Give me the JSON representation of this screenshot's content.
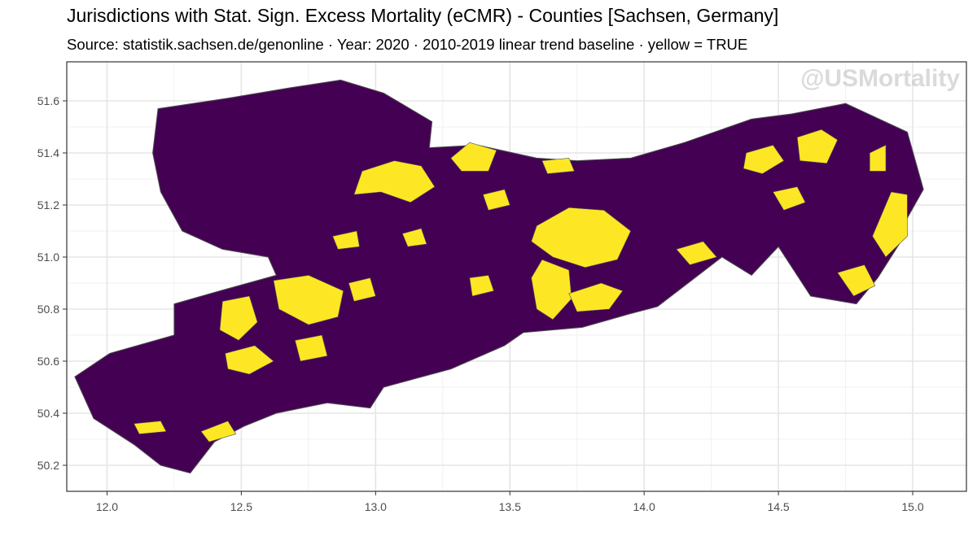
{
  "title": "Jurisdictions with Stat. Sign. Excess Mortality (eCMR) - Counties [Sachsen, Germany]",
  "subtitle": "Source: statistik.sachsen.de/genonline · Year: 2020 · 2010-2019 linear trend baseline · yellow = TRUE",
  "watermark": "@USMortality",
  "colors": {
    "false_fill": "#440154",
    "true_fill": "#FDE725",
    "border": "#4d4d4d",
    "grid": "#e5e5e5",
    "panel_border": "#333333"
  },
  "chart_data": {
    "type": "map",
    "region": "Sachsen, Germany",
    "level": "Counties",
    "year": "2020",
    "legend": "yellow = TRUE",
    "xlim": [
      11.85,
      15.2
    ],
    "ylim": [
      50.1,
      51.75
    ],
    "x_ticks": [
      "12.0",
      "12.5",
      "13.0",
      "13.5",
      "14.0",
      "14.5",
      "15.0"
    ],
    "y_ticks": [
      "50.2",
      "50.4",
      "50.6",
      "50.8",
      "51.0",
      "51.2",
      "51.4",
      "51.6"
    ],
    "outline_lonlat": [
      [
        12.19,
        51.57
      ],
      [
        12.45,
        51.61
      ],
      [
        12.68,
        51.65
      ],
      [
        12.87,
        51.68
      ],
      [
        13.03,
        51.63
      ],
      [
        13.21,
        51.52
      ],
      [
        13.2,
        51.42
      ],
      [
        13.38,
        51.43
      ],
      [
        13.6,
        51.38
      ],
      [
        13.75,
        51.37
      ],
      [
        13.95,
        51.38
      ],
      [
        14.15,
        51.44
      ],
      [
        14.4,
        51.53
      ],
      [
        14.55,
        51.55
      ],
      [
        14.75,
        51.59
      ],
      [
        14.98,
        51.48
      ],
      [
        15.04,
        51.26
      ],
      [
        14.98,
        51.15
      ],
      [
        14.95,
        51.05
      ],
      [
        14.87,
        50.92
      ],
      [
        14.79,
        50.82
      ],
      [
        14.62,
        50.85
      ],
      [
        14.5,
        51.04
      ],
      [
        14.4,
        50.93
      ],
      [
        14.29,
        51.0
      ],
      [
        14.05,
        50.81
      ],
      [
        13.94,
        50.78
      ],
      [
        13.77,
        50.73
      ],
      [
        13.55,
        50.71
      ],
      [
        13.48,
        50.66
      ],
      [
        13.28,
        50.57
      ],
      [
        13.03,
        50.5
      ],
      [
        12.98,
        50.42
      ],
      [
        12.82,
        50.44
      ],
      [
        12.63,
        50.4
      ],
      [
        12.51,
        50.35
      ],
      [
        12.4,
        50.29
      ],
      [
        12.31,
        50.17
      ],
      [
        12.2,
        50.2
      ],
      [
        12.1,
        50.28
      ],
      [
        11.95,
        50.38
      ],
      [
        11.88,
        50.54
      ],
      [
        12.01,
        50.63
      ],
      [
        12.25,
        50.7
      ],
      [
        12.25,
        50.82
      ],
      [
        12.42,
        50.87
      ],
      [
        12.63,
        50.93
      ],
      [
        12.6,
        51.0
      ],
      [
        12.43,
        51.03
      ],
      [
        12.28,
        51.1
      ],
      [
        12.2,
        51.25
      ],
      [
        12.17,
        51.4
      ]
    ],
    "yellow_regions_lonlat": [
      [
        [
          13.6,
          51.12
        ],
        [
          13.72,
          51.19
        ],
        [
          13.85,
          51.18
        ],
        [
          13.95,
          51.1
        ],
        [
          13.9,
          50.99
        ],
        [
          13.78,
          50.96
        ],
        [
          13.66,
          51.0
        ],
        [
          13.58,
          51.06
        ]
      ],
      [
        [
          13.62,
          50.99
        ],
        [
          13.72,
          50.95
        ],
        [
          13.73,
          50.84
        ],
        [
          13.66,
          50.76
        ],
        [
          13.6,
          50.8
        ],
        [
          13.58,
          50.92
        ]
      ],
      [
        [
          13.72,
          50.86
        ],
        [
          13.84,
          50.9
        ],
        [
          13.92,
          50.87
        ],
        [
          13.87,
          50.8
        ],
        [
          13.75,
          50.79
        ]
      ],
      [
        [
          12.95,
          51.33
        ],
        [
          13.07,
          51.37
        ],
        [
          13.17,
          51.35
        ],
        [
          13.22,
          51.27
        ],
        [
          13.13,
          51.21
        ],
        [
          13.02,
          51.25
        ],
        [
          12.92,
          51.24
        ]
      ],
      [
        [
          13.28,
          51.38
        ],
        [
          13.35,
          51.44
        ],
        [
          13.45,
          51.41
        ],
        [
          13.42,
          51.33
        ],
        [
          13.32,
          51.33
        ]
      ],
      [
        [
          12.62,
          50.91
        ],
        [
          12.75,
          50.93
        ],
        [
          12.88,
          50.87
        ],
        [
          12.86,
          50.77
        ],
        [
          12.75,
          50.74
        ],
        [
          12.64,
          50.8
        ]
      ],
      [
        [
          12.43,
          50.83
        ],
        [
          12.53,
          50.85
        ],
        [
          12.56,
          50.75
        ],
        [
          12.49,
          50.68
        ],
        [
          12.42,
          50.72
        ]
      ],
      [
        [
          12.44,
          50.63
        ],
        [
          12.55,
          50.66
        ],
        [
          12.62,
          50.6
        ],
        [
          12.53,
          50.55
        ],
        [
          12.45,
          50.57
        ]
      ],
      [
        [
          12.7,
          50.68
        ],
        [
          12.8,
          50.7
        ],
        [
          12.82,
          50.62
        ],
        [
          12.72,
          50.6
        ]
      ],
      [
        [
          12.9,
          50.9
        ],
        [
          12.98,
          50.92
        ],
        [
          13.0,
          50.85
        ],
        [
          12.92,
          50.83
        ]
      ],
      [
        [
          14.57,
          51.46
        ],
        [
          14.66,
          51.49
        ],
        [
          14.72,
          51.45
        ],
        [
          14.68,
          51.36
        ],
        [
          14.58,
          51.37
        ]
      ],
      [
        [
          14.38,
          51.4
        ],
        [
          14.48,
          51.43
        ],
        [
          14.52,
          51.37
        ],
        [
          14.44,
          51.32
        ],
        [
          14.37,
          51.34
        ]
      ],
      [
        [
          14.92,
          51.25
        ],
        [
          14.98,
          51.24
        ],
        [
          14.98,
          51.08
        ],
        [
          14.9,
          51.0
        ],
        [
          14.85,
          51.08
        ]
      ],
      [
        [
          14.72,
          50.94
        ],
        [
          14.82,
          50.97
        ],
        [
          14.86,
          50.89
        ],
        [
          14.78,
          50.85
        ]
      ],
      [
        [
          14.84,
          51.4
        ],
        [
          14.9,
          51.43
        ],
        [
          14.9,
          51.33
        ],
        [
          14.84,
          51.33
        ]
      ],
      [
        [
          14.48,
          51.25
        ],
        [
          14.57,
          51.27
        ],
        [
          14.6,
          51.21
        ],
        [
          14.52,
          51.18
        ]
      ],
      [
        [
          14.12,
          51.03
        ],
        [
          14.22,
          51.06
        ],
        [
          14.27,
          51.0
        ],
        [
          14.17,
          50.97
        ]
      ],
      [
        [
          13.35,
          50.92
        ],
        [
          13.42,
          50.93
        ],
        [
          13.44,
          50.87
        ],
        [
          13.36,
          50.85
        ]
      ],
      [
        [
          12.1,
          50.36
        ],
        [
          12.2,
          50.37
        ],
        [
          12.22,
          50.33
        ],
        [
          12.12,
          50.32
        ]
      ],
      [
        [
          12.35,
          50.33
        ],
        [
          12.45,
          50.37
        ],
        [
          12.48,
          50.32
        ],
        [
          12.38,
          50.29
        ]
      ],
      [
        [
          12.84,
          51.08
        ],
        [
          12.93,
          51.1
        ],
        [
          12.94,
          51.04
        ],
        [
          12.86,
          51.03
        ]
      ],
      [
        [
          13.4,
          51.24
        ],
        [
          13.48,
          51.26
        ],
        [
          13.5,
          51.2
        ],
        [
          13.42,
          51.18
        ]
      ],
      [
        [
          13.62,
          51.37
        ],
        [
          13.72,
          51.38
        ],
        [
          13.74,
          51.33
        ],
        [
          13.64,
          51.32
        ]
      ],
      [
        [
          13.1,
          51.09
        ],
        [
          13.17,
          51.11
        ],
        [
          13.19,
          51.05
        ],
        [
          13.12,
          51.04
        ]
      ]
    ]
  }
}
